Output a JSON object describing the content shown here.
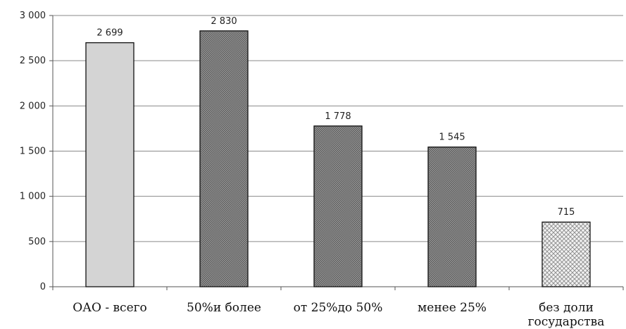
{
  "chart_data": {
    "type": "bar",
    "categories": [
      "ОАО - всего",
      "50% и более",
      "от 25% до 50%",
      "менее 25%",
      "без доли государства"
    ],
    "category_lines": [
      [
        "ОАО - всего"
      ],
      [
        "50%и более"
      ],
      [
        "от 25%до 50%"
      ],
      [
        "менее 25%"
      ],
      [
        "без доли",
        "государства"
      ]
    ],
    "values": [
      2699,
      2830,
      1778,
      1545,
      715
    ],
    "data_labels": [
      "2 699",
      "2 830",
      "1 778",
      "1 545",
      "715"
    ],
    "yticks": [
      0,
      500,
      1000,
      1500,
      2000,
      2500,
      3000
    ],
    "ytick_labels": [
      "0",
      "500",
      "1 000",
      "1 500",
      "2 000",
      "2 500",
      "3 000"
    ],
    "ylim": [
      0,
      3000
    ],
    "title": "",
    "xlabel": "",
    "ylabel": "",
    "grid": true,
    "legend": "none",
    "bar_fills": [
      "light-gray",
      "dark-crosshatch",
      "dark-crosshatch",
      "dark-crosshatch",
      "light-crosshatch"
    ],
    "colors": {
      "light_bar": "#d4d4d4",
      "dark_bar": "#6a6a6a",
      "grid": "#8a8a8a",
      "axis": "#555555"
    }
  }
}
